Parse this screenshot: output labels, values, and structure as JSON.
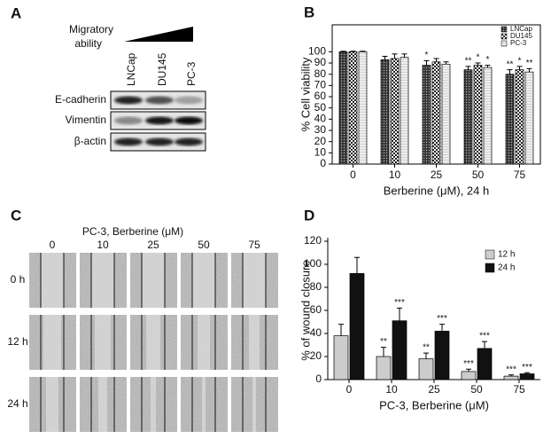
{
  "panel_labels": [
    "A",
    "B",
    "C",
    "D"
  ],
  "western_blot": {
    "title_lines": [
      "Migratory",
      "ability"
    ],
    "lanes": [
      "LNCap",
      "DU145",
      "PC-3"
    ],
    "rows": [
      "E-cadherin",
      "Vimentin",
      "β-actin"
    ]
  },
  "scratch_assay": {
    "title": "PC-3, Berberine (μM)",
    "columns": [
      "0",
      "10",
      "25",
      "50",
      "75"
    ],
    "rows": [
      "0 h",
      "12 h",
      "24 h"
    ]
  },
  "chart_data": [
    {
      "type": "bar",
      "x_label": "Berberine (μM), 24 h",
      "y_label": "% Cell viability",
      "categories": [
        "0",
        "10",
        "25",
        "50",
        "75"
      ],
      "series": [
        {
          "name": "LNCap",
          "color": "#444444",
          "pattern": "dots",
          "values": [
            100,
            93,
            88,
            84,
            80
          ],
          "errors": [
            0.5,
            3,
            4,
            3,
            4
          ],
          "annotations": [
            null,
            null,
            "*",
            "**",
            "**"
          ]
        },
        {
          "name": "DU145",
          "color": "#888888",
          "pattern": "checker",
          "values": [
            100,
            94,
            91,
            88,
            84
          ],
          "errors": [
            0.5,
            4,
            3,
            2,
            3
          ],
          "annotations": [
            null,
            null,
            null,
            "*",
            "*"
          ]
        },
        {
          "name": "PC-3",
          "color": "#dddddd",
          "pattern": "lines",
          "values": [
            100,
            95,
            89,
            86,
            82
          ],
          "errors": [
            0.5,
            3,
            2,
            2,
            3
          ],
          "annotations": [
            null,
            null,
            null,
            "*",
            "**"
          ]
        }
      ],
      "ylim": [
        0,
        124
      ],
      "yticks": [
        0,
        10,
        20,
        30,
        40,
        50,
        60,
        70,
        80,
        90,
        100
      ],
      "legend": "upper right"
    },
    {
      "type": "bar",
      "x_label": "PC-3, Berberine (μM)",
      "y_label": "% of wound closure",
      "categories": [
        "0",
        "10",
        "25",
        "50",
        "75"
      ],
      "series": [
        {
          "name": "12 h",
          "color": "#cccccc",
          "values": [
            38,
            20,
            18,
            7,
            3
          ],
          "errors": [
            10,
            8,
            5,
            2,
            1
          ],
          "annotations": [
            null,
            "**",
            "**",
            "***",
            "***"
          ]
        },
        {
          "name": "24 h",
          "color": "#111111",
          "values": [
            92,
            51,
            42,
            27,
            5
          ],
          "errors": [
            14,
            11,
            6,
            6,
            1
          ],
          "annotations": [
            null,
            "***",
            "***",
            "***",
            "***"
          ]
        }
      ],
      "ylim": [
        0,
        120
      ],
      "yticks": [
        0,
        20,
        40,
        60,
        80,
        100,
        120
      ],
      "legend": "upper right"
    }
  ]
}
